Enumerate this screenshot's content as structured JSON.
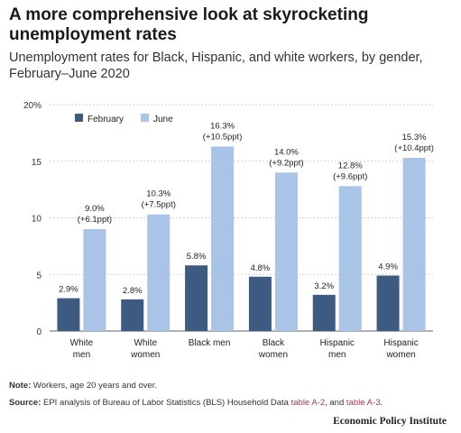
{
  "title": "A more comprehensive look at skyrocketing unemployment rates",
  "subtitle": "Unemployment rates for Black, Hispanic, and white workers, by gender, February–June 2020",
  "colors": {
    "february": "#3d5a80",
    "june": "#a9c4e6",
    "grid": "#d0d0d0",
    "link": "#a33d4e"
  },
  "chart_data": {
    "type": "bar",
    "title": "",
    "xlabel": "",
    "ylabel": "",
    "ylim": [
      0,
      20
    ],
    "yticks": [
      "0",
      "5",
      "10",
      "15",
      "20%"
    ],
    "grid": true,
    "legend_position": "top-left",
    "categories": [
      [
        "White",
        "men"
      ],
      [
        "White",
        "women"
      ],
      [
        "Black men"
      ],
      [
        "Black",
        "women"
      ],
      [
        "Hispanic",
        "men"
      ],
      [
        "Hispanic",
        "women"
      ]
    ],
    "series": [
      {
        "name": "February",
        "values": [
          2.9,
          2.8,
          5.8,
          4.8,
          3.2,
          4.9
        ],
        "labels": [
          "2.9%",
          "2.8%",
          "5.8%",
          "4.8%",
          "3.2%",
          "4.9%"
        ]
      },
      {
        "name": "June",
        "values": [
          9.0,
          10.3,
          16.3,
          14.0,
          12.8,
          15.3
        ],
        "labels": [
          [
            "9.0%",
            "(+6.1ppt)"
          ],
          [
            "10.3%",
            "(+7.5ppt)"
          ],
          [
            "16.3%",
            "(+10.5ppt)"
          ],
          [
            "14.0%",
            "(+9.2ppt)"
          ],
          [
            "12.8%",
            "(+9.6ppt)"
          ],
          [
            "15.3%",
            "(+10.4ppt)"
          ]
        ]
      }
    ]
  },
  "note": {
    "label": "Note:",
    "text": " Workers, age 20 years and over."
  },
  "source": {
    "label": "Source:",
    "text": " EPI analysis of Bureau of Labor Statistics (BLS) Household Data ",
    "link1": "table A-2",
    "mid": ", and ",
    "link2": "table A-3",
    "end": "."
  },
  "logo": "Economic Policy Institute"
}
